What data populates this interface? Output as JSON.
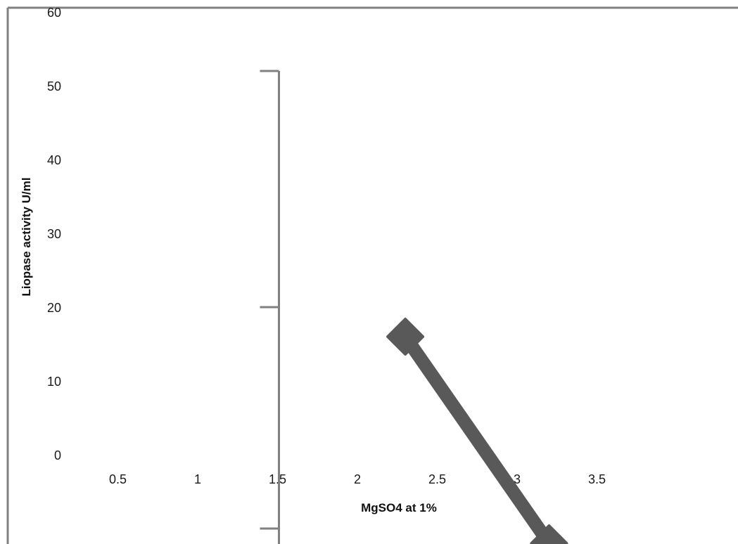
{
  "chart_data": {
    "type": "line",
    "title": "",
    "xlabel": "MgSO4 at 1%",
    "ylabel": "Liopase activity U/ml",
    "xlim": [
      0,
      4.5
    ],
    "ylim": [
      -10,
      60
    ],
    "x_ticks": [
      "0.5",
      "1",
      "1.5",
      "2",
      "2.5",
      "3",
      "3.5"
    ],
    "y_ticks": [
      "0",
      "10",
      "20",
      "30",
      "40",
      "50",
      "60"
    ],
    "series": [
      {
        "points": [
          {
            "x": 2.3,
            "y": 16
          },
          {
            "x": 3.2,
            "y": -12
          }
        ]
      }
    ],
    "error_bar": {
      "x": 1.5,
      "y_low": -10,
      "y_high": 52,
      "y_mid": 20
    },
    "grid": false,
    "legend": "none",
    "colors": {
      "line": "#595959",
      "axis": "#808080",
      "text": "#1a1a1a"
    }
  }
}
